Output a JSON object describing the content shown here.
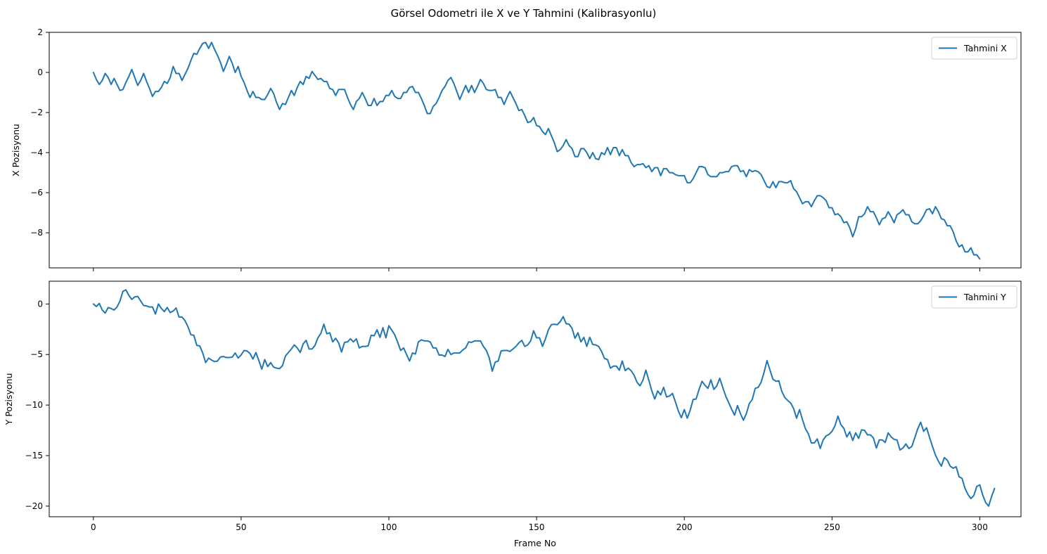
{
  "figure": {
    "title": "Görsel Odometri ile X ve Y Tahmini (Kalibrasyonlu)",
    "line_color": "#1f77b4"
  },
  "chart_data": [
    {
      "type": "line",
      "panel": "top",
      "ylabel": "X Pozisyonu",
      "xlabel": "",
      "xlim": [
        -14.95,
        313.95
      ],
      "ylim": [
        -9.75,
        2.0
      ],
      "xticks": [
        0,
        50,
        100,
        150,
        200,
        250,
        300
      ],
      "yticks": [
        2,
        0,
        -2,
        -4,
        -6,
        -8
      ],
      "ytick_labels": [
        "2",
        "0",
        "−2",
        "−4",
        "−6",
        "−8"
      ],
      "show_xtick_labels": false,
      "legend_position": "top-right",
      "series": [
        {
          "name": "Tahmini X",
          "x_start": 0,
          "x_step": 1,
          "values": [
            0.0,
            -0.35,
            -0.6,
            -0.4,
            -0.05,
            -0.25,
            -0.6,
            -0.3,
            -0.6,
            -0.9,
            -0.85,
            -0.5,
            -0.2,
            0.15,
            -0.25,
            -0.65,
            -0.4,
            -0.05,
            -0.45,
            -0.8,
            -1.2,
            -0.95,
            -0.95,
            -0.75,
            -0.45,
            -0.55,
            -0.25,
            0.3,
            -0.05,
            -0.05,
            -0.4,
            -0.1,
            0.2,
            0.6,
            0.95,
            0.9,
            1.2,
            1.45,
            1.5,
            1.2,
            1.5,
            1.15,
            0.85,
            0.5,
            0.05,
            0.4,
            0.8,
            0.45,
            0.0,
            0.3,
            -0.2,
            -0.5,
            -0.9,
            -1.25,
            -0.95,
            -1.25,
            -1.25,
            -1.35,
            -1.35,
            -1.1,
            -0.8,
            -1.05,
            -1.5,
            -1.85,
            -1.55,
            -1.6,
            -1.25,
            -0.9,
            -1.15,
            -0.75,
            -0.45,
            -0.6,
            -0.2,
            -0.3,
            0.05,
            -0.15,
            -0.35,
            -0.3,
            -0.45,
            -0.45,
            -0.8,
            -0.85,
            -1.15,
            -0.85,
            -0.85,
            -0.85,
            -1.25,
            -1.6,
            -1.85,
            -1.45,
            -1.3,
            -1.0,
            -1.3,
            -1.65,
            -1.65,
            -1.3,
            -1.65,
            -1.45,
            -1.45,
            -1.15,
            -1.15,
            -0.9,
            -1.2,
            -1.3,
            -1.3,
            -1.0,
            -1.0,
            -0.75,
            -0.7,
            -1.0,
            -1.0,
            -1.3,
            -1.65,
            -2.05,
            -2.05,
            -1.7,
            -1.55,
            -1.25,
            -0.9,
            -0.7,
            -0.4,
            -0.25,
            -0.55,
            -0.95,
            -1.35,
            -1.0,
            -0.65,
            -1.0,
            -0.65,
            -1.0,
            -0.7,
            -0.35,
            -0.55,
            -0.85,
            -0.9,
            -0.9,
            -0.85,
            -1.25,
            -1.25,
            -1.6,
            -1.25,
            -0.95,
            -1.25,
            -1.55,
            -1.9,
            -1.85,
            -2.15,
            -2.5,
            -2.45,
            -2.25,
            -2.65,
            -2.7,
            -2.95,
            -3.1,
            -2.8,
            -3.15,
            -3.5,
            -3.95,
            -3.85,
            -3.65,
            -3.35,
            -3.65,
            -3.8,
            -4.2,
            -4.2,
            -3.8,
            -3.8,
            -4.0,
            -4.3,
            -4.0,
            -4.3,
            -4.35,
            -4.0,
            -4.1,
            -3.75,
            -4.1,
            -3.75,
            -3.75,
            -4.15,
            -3.85,
            -4.15,
            -4.15,
            -4.5,
            -4.7,
            -4.6,
            -4.6,
            -4.55,
            -4.75,
            -4.65,
            -4.95,
            -4.75,
            -4.75,
            -5.15,
            -4.8,
            -4.8,
            -5.0,
            -5.0,
            -5.1,
            -5.15,
            -5.15,
            -5.15,
            -5.5,
            -5.5,
            -5.3,
            -5.0,
            -4.7,
            -4.7,
            -4.75,
            -5.1,
            -5.2,
            -5.2,
            -5.2,
            -5.0,
            -5.0,
            -4.95,
            -4.95,
            -4.7,
            -4.65,
            -4.65,
            -4.95,
            -4.9,
            -5.2,
            -4.85,
            -4.95,
            -4.9,
            -4.95,
            -5.1,
            -5.4,
            -5.7,
            -5.75,
            -5.45,
            -5.75,
            -5.45,
            -5.45,
            -5.5,
            -5.5,
            -5.4,
            -5.8,
            -5.95,
            -6.25,
            -6.55,
            -6.45,
            -6.45,
            -6.7,
            -6.4,
            -6.15,
            -6.15,
            -6.25,
            -6.4,
            -6.75,
            -6.75,
            -7.1,
            -7.05,
            -7.2,
            -7.5,
            -7.45,
            -7.75,
            -8.2,
            -7.8,
            -7.2,
            -7.2,
            -7.05,
            -6.7,
            -6.95,
            -6.95,
            -7.25,
            -7.6,
            -7.3,
            -7.25,
            -6.95,
            -7.2,
            -7.5,
            -7.1,
            -7.0,
            -6.85,
            -7.1,
            -7.1,
            -7.45,
            -7.55,
            -7.55,
            -7.4,
            -7.15,
            -6.85,
            -6.8,
            -7.05,
            -6.7,
            -6.95,
            -7.3,
            -7.35,
            -7.65,
            -7.65,
            -7.95,
            -8.4,
            -8.7,
            -8.6,
            -8.95,
            -8.95,
            -8.75,
            -9.1,
            -9.1,
            -9.3
          ]
        }
      ]
    },
    {
      "type": "line",
      "panel": "bottom",
      "ylabel": "Y Pozisyonu",
      "xlabel": "Frame No",
      "xlim": [
        -14.95,
        313.95
      ],
      "ylim": [
        -21.05,
        2.25
      ],
      "xticks": [
        0,
        50,
        100,
        150,
        200,
        250,
        300
      ],
      "xtick_labels": [
        "0",
        "50",
        "100",
        "150",
        "200",
        "250",
        "300"
      ],
      "yticks": [
        0,
        -5,
        -10,
        -15,
        -20
      ],
      "ytick_labels": [
        "0",
        "−5",
        "−10",
        "−15",
        "−20"
      ],
      "show_xtick_labels": true,
      "legend_position": "top-right",
      "series": [
        {
          "name": "Tahmini Y",
          "x_start": 0,
          "x_step": 1,
          "values": [
            0.0,
            -0.25,
            0.05,
            -0.6,
            -0.9,
            -0.35,
            -0.45,
            -0.6,
            -0.3,
            0.3,
            1.25,
            1.4,
            0.85,
            0.45,
            0.7,
            0.75,
            0.3,
            -0.15,
            -0.2,
            -0.3,
            -0.3,
            -1.0,
            0.0,
            -0.45,
            -0.75,
            -0.35,
            -0.85,
            -0.7,
            -0.4,
            -1.3,
            -1.3,
            -1.65,
            -2.25,
            -3.05,
            -3.1,
            -4.1,
            -4.15,
            -4.85,
            -5.8,
            -5.35,
            -5.55,
            -5.7,
            -5.65,
            -5.25,
            -5.2,
            -5.3,
            -5.3,
            -5.25,
            -4.85,
            -5.35,
            -5.05,
            -4.6,
            -4.65,
            -4.9,
            -5.45,
            -4.8,
            -5.6,
            -6.45,
            -5.5,
            -6.2,
            -5.8,
            -6.25,
            -6.35,
            -6.4,
            -6.1,
            -5.15,
            -4.8,
            -4.45,
            -4.05,
            -4.35,
            -4.8,
            -3.95,
            -3.6,
            -4.45,
            -4.45,
            -4.1,
            -3.35,
            -2.9,
            -2.0,
            -2.95,
            -2.85,
            -3.75,
            -3.4,
            -3.85,
            -4.75,
            -3.8,
            -3.75,
            -3.45,
            -3.75,
            -3.45,
            -4.35,
            -4.2,
            -4.2,
            -4.15,
            -3.1,
            -3.15,
            -2.55,
            -3.3,
            -2.35,
            -3.35,
            -2.15,
            -2.6,
            -3.05,
            -3.8,
            -4.6,
            -4.35,
            -5.0,
            -5.65,
            -4.85,
            -4.95,
            -3.75,
            -3.55,
            -3.65,
            -3.65,
            -3.75,
            -4.35,
            -4.35,
            -5.05,
            -5.05,
            -5.2,
            -4.5,
            -5.0,
            -4.85,
            -4.85,
            -4.85,
            -4.55,
            -4.35,
            -3.75,
            -3.8,
            -3.65,
            -3.65,
            -3.65,
            -4.2,
            -4.6,
            -5.35,
            -6.65,
            -5.75,
            -5.65,
            -4.65,
            -4.6,
            -4.6,
            -4.7,
            -4.45,
            -4.2,
            -3.85,
            -3.6,
            -4.2,
            -4.05,
            -3.65,
            -2.65,
            -3.35,
            -3.35,
            -4.2,
            -3.45,
            -2.55,
            -2.05,
            -2.0,
            -2.05,
            -1.75,
            -1.25,
            -1.95,
            -2.0,
            -2.4,
            -3.4,
            -2.85,
            -3.75,
            -3.3,
            -4.2,
            -3.3,
            -4.0,
            -4.05,
            -4.2,
            -4.7,
            -5.4,
            -5.5,
            -6.35,
            -6.15,
            -6.15,
            -6.55,
            -5.65,
            -6.6,
            -6.35,
            -6.6,
            -7.05,
            -7.75,
            -8.1,
            -7.55,
            -6.55,
            -7.55,
            -8.6,
            -9.4,
            -8.6,
            -9.0,
            -8.25,
            -9.2,
            -9.1,
            -8.85,
            -9.7,
            -10.6,
            -11.25,
            -10.45,
            -11.3,
            -10.5,
            -9.45,
            -9.4,
            -8.45,
            -7.65,
            -8.05,
            -8.35,
            -7.5,
            -8.45,
            -8.1,
            -7.35,
            -8.25,
            -9.1,
            -9.75,
            -10.4,
            -11.0,
            -10.05,
            -10.85,
            -11.5,
            -10.85,
            -9.85,
            -9.45,
            -8.35,
            -8.25,
            -7.75,
            -6.75,
            -5.6,
            -6.55,
            -7.45,
            -7.65,
            -7.6,
            -8.65,
            -9.25,
            -9.55,
            -9.8,
            -10.35,
            -11.3,
            -10.45,
            -11.45,
            -12.35,
            -12.85,
            -13.75,
            -13.75,
            -13.35,
            -14.3,
            -13.45,
            -13.05,
            -12.9,
            -12.6,
            -12.05,
            -11.1,
            -11.95,
            -12.3,
            -13.15,
            -12.65,
            -13.5,
            -12.75,
            -13.3,
            -12.45,
            -12.5,
            -12.95,
            -12.95,
            -13.25,
            -14.25,
            -13.45,
            -13.45,
            -13.7,
            -12.75,
            -13.15,
            -13.4,
            -13.45,
            -14.45,
            -14.25,
            -13.85,
            -14.3,
            -14.1,
            -13.25,
            -12.35,
            -11.7,
            -12.6,
            -12.25,
            -13.2,
            -14.1,
            -14.95,
            -15.55,
            -16.05,
            -15.2,
            -15.45,
            -16.05,
            -16.25,
            -16.1,
            -17.1,
            -17.25,
            -18.25,
            -18.85,
            -19.25,
            -18.95,
            -18.05,
            -17.9,
            -18.9,
            -19.65,
            -20.0,
            -19.05,
            -18.25
          ]
        }
      ]
    }
  ]
}
